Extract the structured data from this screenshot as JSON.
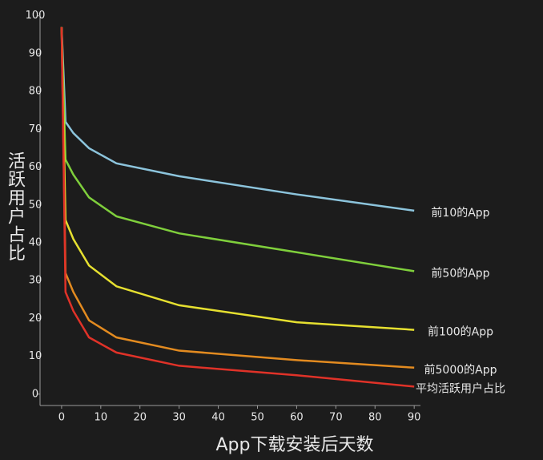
{
  "chart_data": {
    "type": "line",
    "x_label": "App下载安装后天数",
    "y_label": "活跃用户占比",
    "x": [
      0,
      1,
      3,
      7,
      14,
      30,
      60,
      90
    ],
    "series": [
      {
        "name": "前10的App",
        "color": "#8cc4dc",
        "values": [
          97,
          72,
          69,
          65,
          61,
          57.6,
          52.8,
          48.5
        ]
      },
      {
        "name": "前50的App",
        "color": "#7fcf3c",
        "values": [
          97,
          62,
          58,
          52,
          47,
          42.5,
          37.5,
          32.5
        ]
      },
      {
        "name": "前100的App",
        "color": "#e6e030",
        "values": [
          97,
          46,
          41,
          34,
          28.5,
          23.5,
          19,
          17
        ]
      },
      {
        "name": "前5000的App",
        "color": "#e38b20",
        "values": [
          97,
          32,
          27,
          19.5,
          15,
          11.5,
          9,
          7
        ]
      },
      {
        "name": "平均活跃用户占比",
        "color": "#e03228",
        "values": [
          97,
          27,
          22,
          15,
          11,
          7.5,
          5,
          2
        ]
      }
    ],
    "xlim": [
      -5.5,
      91.6
    ],
    "ylim": [
      -3,
      101
    ],
    "xticks": [
      0,
      10,
      20,
      30,
      40,
      50,
      60,
      70,
      80,
      90
    ],
    "yticks": [
      0,
      10,
      20,
      30,
      40,
      50,
      60,
      70,
      80,
      90,
      100
    ]
  }
}
